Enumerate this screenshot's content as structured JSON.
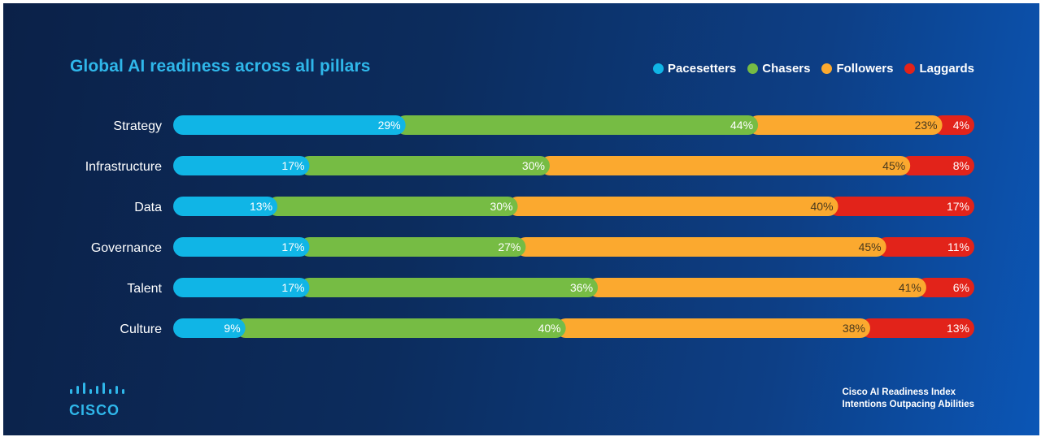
{
  "chart_data": {
    "type": "bar",
    "orientation": "horizontal",
    "stacked": true,
    "title": "Global AI readiness across all pillars",
    "categories": [
      "Strategy",
      "Infrastructure",
      "Data",
      "Governance",
      "Talent",
      "Culture"
    ],
    "series": [
      {
        "name": "Pacesetters",
        "color": "#10b5e6",
        "values": [
          29,
          17,
          13,
          17,
          17,
          9
        ],
        "labels": [
          "29%",
          "17%",
          "13%",
          "17%",
          "17%",
          "9%"
        ]
      },
      {
        "name": "Chasers",
        "color": "#76bc44",
        "values": [
          44,
          30,
          30,
          27,
          36,
          40
        ],
        "labels": [
          "44%",
          "30%",
          "30%",
          "27%",
          "36%",
          "40%"
        ]
      },
      {
        "name": "Followers",
        "color": "#fba92f",
        "values": [
          23,
          45,
          40,
          45,
          41,
          38
        ],
        "labels": [
          "23%",
          "45%",
          "40%",
          "45%",
          "41%",
          "38%"
        ]
      },
      {
        "name": "Laggards",
        "color": "#e2231a",
        "values": [
          4,
          8,
          17,
          11,
          6,
          13
        ],
        "labels": [
          "4%",
          "8%",
          "17%",
          "11%",
          "6%",
          "13%"
        ]
      }
    ],
    "legend_position": "top-right",
    "grid": false
  },
  "branding": {
    "logo_word": "CISCO",
    "footer_line1": "Cisco AI Readiness Index",
    "footer_line2": "Intentions Outpacing Abilities"
  }
}
